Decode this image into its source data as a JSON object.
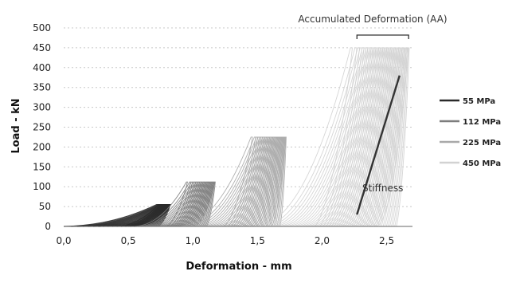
{
  "chart_data": {
    "type": "line",
    "title": "",
    "xlabel": "Deformation -  mm",
    "ylabel": "Load - kN",
    "xlim": [
      0,
      2.7
    ],
    "ylim": [
      0,
      500
    ],
    "x_ticks": [
      "0,0",
      "0,5",
      "1,0",
      "1,5",
      "2,0",
      "2,5"
    ],
    "x_tick_values": [
      0,
      0.5,
      1.0,
      1.5,
      2.0,
      2.5
    ],
    "y_ticks": [
      "0",
      "50",
      "100",
      "150",
      "200",
      "250",
      "300",
      "350",
      "400",
      "450",
      "500"
    ],
    "y_tick_values": [
      0,
      50,
      100,
      150,
      200,
      250,
      300,
      350,
      400,
      450,
      500
    ],
    "grid": "horizontal-dotted",
    "legend_placement": "right",
    "series": [
      {
        "name": "55 MPa",
        "color": "#2a2a2a",
        "peak_load": 55,
        "start_first": 0.0,
        "start_last": 0.58,
        "end_first": 0.72,
        "end_last": 0.82,
        "cycles": 16
      },
      {
        "name": "112 MPa",
        "color": "#7d7d7d",
        "peak_load": 112,
        "start_first": 0.55,
        "start_last": 1.0,
        "end_first": 0.95,
        "end_last": 1.17,
        "cycles": 24
      },
      {
        "name": "225 MPa",
        "color": "#a9a9a9",
        "peak_load": 225,
        "start_first": 0.9,
        "start_last": 1.6,
        "end_first": 1.45,
        "end_last": 1.72,
        "cycles": 30
      },
      {
        "name": "450 MPa",
        "color": "#d2d2d2",
        "peak_load": 450,
        "start_first": 1.5,
        "start_last": 2.42,
        "end_first": 2.22,
        "end_last": 2.67,
        "cycles": 40
      }
    ],
    "annotations": {
      "top": "Accumulated  Deformation (AA)",
      "side": "Stiffness",
      "aa_range": [
        2.27,
        2.67
      ],
      "stiffness_line": {
        "x": [
          2.27,
          2.6
        ],
        "y": [
          30,
          380
        ]
      }
    }
  }
}
